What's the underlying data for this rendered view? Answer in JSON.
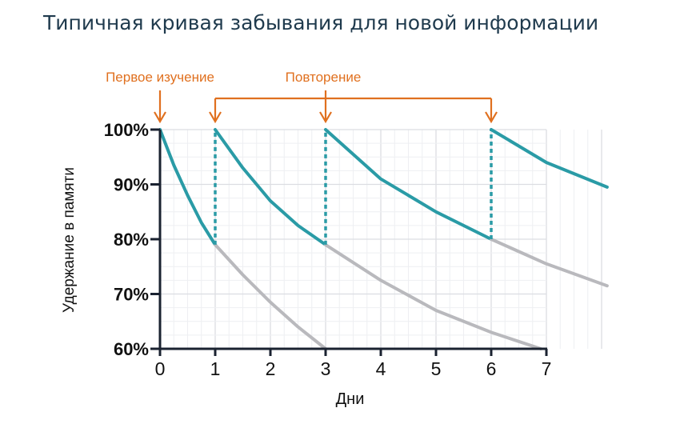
{
  "chart_data": {
    "type": "line",
    "title": "Типичная кривая забывания для новой информации",
    "xlabel": "Дни",
    "ylabel": "Удержание в памяти",
    "xlim": [
      0,
      8.1
    ],
    "ylim": [
      60,
      100
    ],
    "x_ticks": [
      "0",
      "1",
      "2",
      "3",
      "4",
      "5",
      "6",
      "7"
    ],
    "y_ticks": [
      "60%",
      "70%",
      "80%",
      "90%",
      "100%"
    ],
    "grid": true,
    "colors": {
      "retained": "#2a9ba6",
      "forgotten": "#b9b9bd",
      "annotation": "#e0701f",
      "axis": "#1a2230"
    },
    "annotations": {
      "first_study": {
        "label": "Первое изучение",
        "x": 0
      },
      "repetition": {
        "label": "Повторение",
        "x": [
          1,
          3,
          6
        ]
      }
    },
    "series": [
      {
        "style": "retained",
        "points": [
          [
            0,
            100
          ],
          [
            0.25,
            93.5
          ],
          [
            0.5,
            88
          ],
          [
            0.75,
            83
          ],
          [
            1,
            79
          ]
        ]
      },
      {
        "style": "forgotten",
        "points": [
          [
            1,
            79
          ],
          [
            1.5,
            73.5
          ],
          [
            2,
            68.5
          ],
          [
            2.5,
            64
          ],
          [
            3,
            60
          ]
        ]
      },
      {
        "style": "retained",
        "points": [
          [
            1,
            100
          ],
          [
            1.5,
            93
          ],
          [
            2,
            87
          ],
          [
            2.5,
            82.5
          ],
          [
            3,
            79
          ]
        ]
      },
      {
        "style": "forgotten",
        "points": [
          [
            3,
            79
          ],
          [
            4,
            72.5
          ],
          [
            5,
            67
          ],
          [
            6,
            63
          ],
          [
            6.9,
            60
          ]
        ]
      },
      {
        "style": "retained",
        "points": [
          [
            3,
            100
          ],
          [
            4,
            91
          ],
          [
            5,
            85
          ],
          [
            6,
            80
          ]
        ]
      },
      {
        "style": "forgotten",
        "points": [
          [
            6,
            80
          ],
          [
            7,
            75.5
          ],
          [
            8.1,
            71.5
          ]
        ]
      },
      {
        "style": "retained",
        "points": [
          [
            6,
            100
          ],
          [
            7,
            94
          ],
          [
            8.1,
            89.5
          ]
        ]
      }
    ],
    "repetition_jumps": [
      [
        1,
        79,
        100
      ],
      [
        3,
        79,
        100
      ],
      [
        6,
        80,
        100
      ]
    ]
  }
}
